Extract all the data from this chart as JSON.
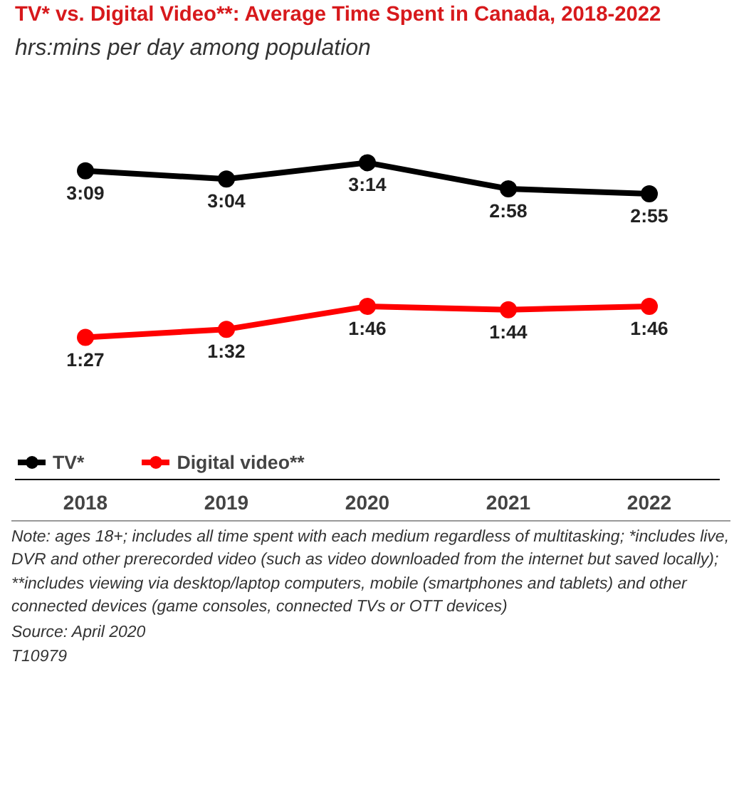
{
  "chart_data": {
    "type": "line",
    "title": "TV* vs. Digital Video**: Average Time Spent in Canada, 2018-2022",
    "subtitle": "hrs:mins per day among population",
    "categories": [
      "2018",
      "2019",
      "2020",
      "2021",
      "2022"
    ],
    "series": [
      {
        "name": "TV*",
        "color": "#000000",
        "values": [
          189,
          184,
          194,
          178,
          175
        ],
        "value_labels": [
          "3:09",
          "3:04",
          "3:14",
          "2:58",
          "2:55"
        ]
      },
      {
        "name": "Digital video**",
        "color": "#ff0000",
        "values": [
          87,
          92,
          106,
          104,
          106
        ],
        "value_labels": [
          "1:27",
          "1:32",
          "1:46",
          "1:44",
          "1:46"
        ]
      }
    ],
    "marker": "circle",
    "line_style": "solid",
    "legend": "bottom",
    "grid": false,
    "annotations": [
      "Note: ages 18+; includes all time spent with each medium regardless of multitasking; *includes live, DVR and other prerecorded video (such as video downloaded from the internet but saved locally); **includes viewing via desktop/laptop computers, mobile (smartphones and tablets) and other connected devices (game consoles, connected TVs or OTT devices)",
      "Source: April 2020",
      "T10979"
    ]
  }
}
